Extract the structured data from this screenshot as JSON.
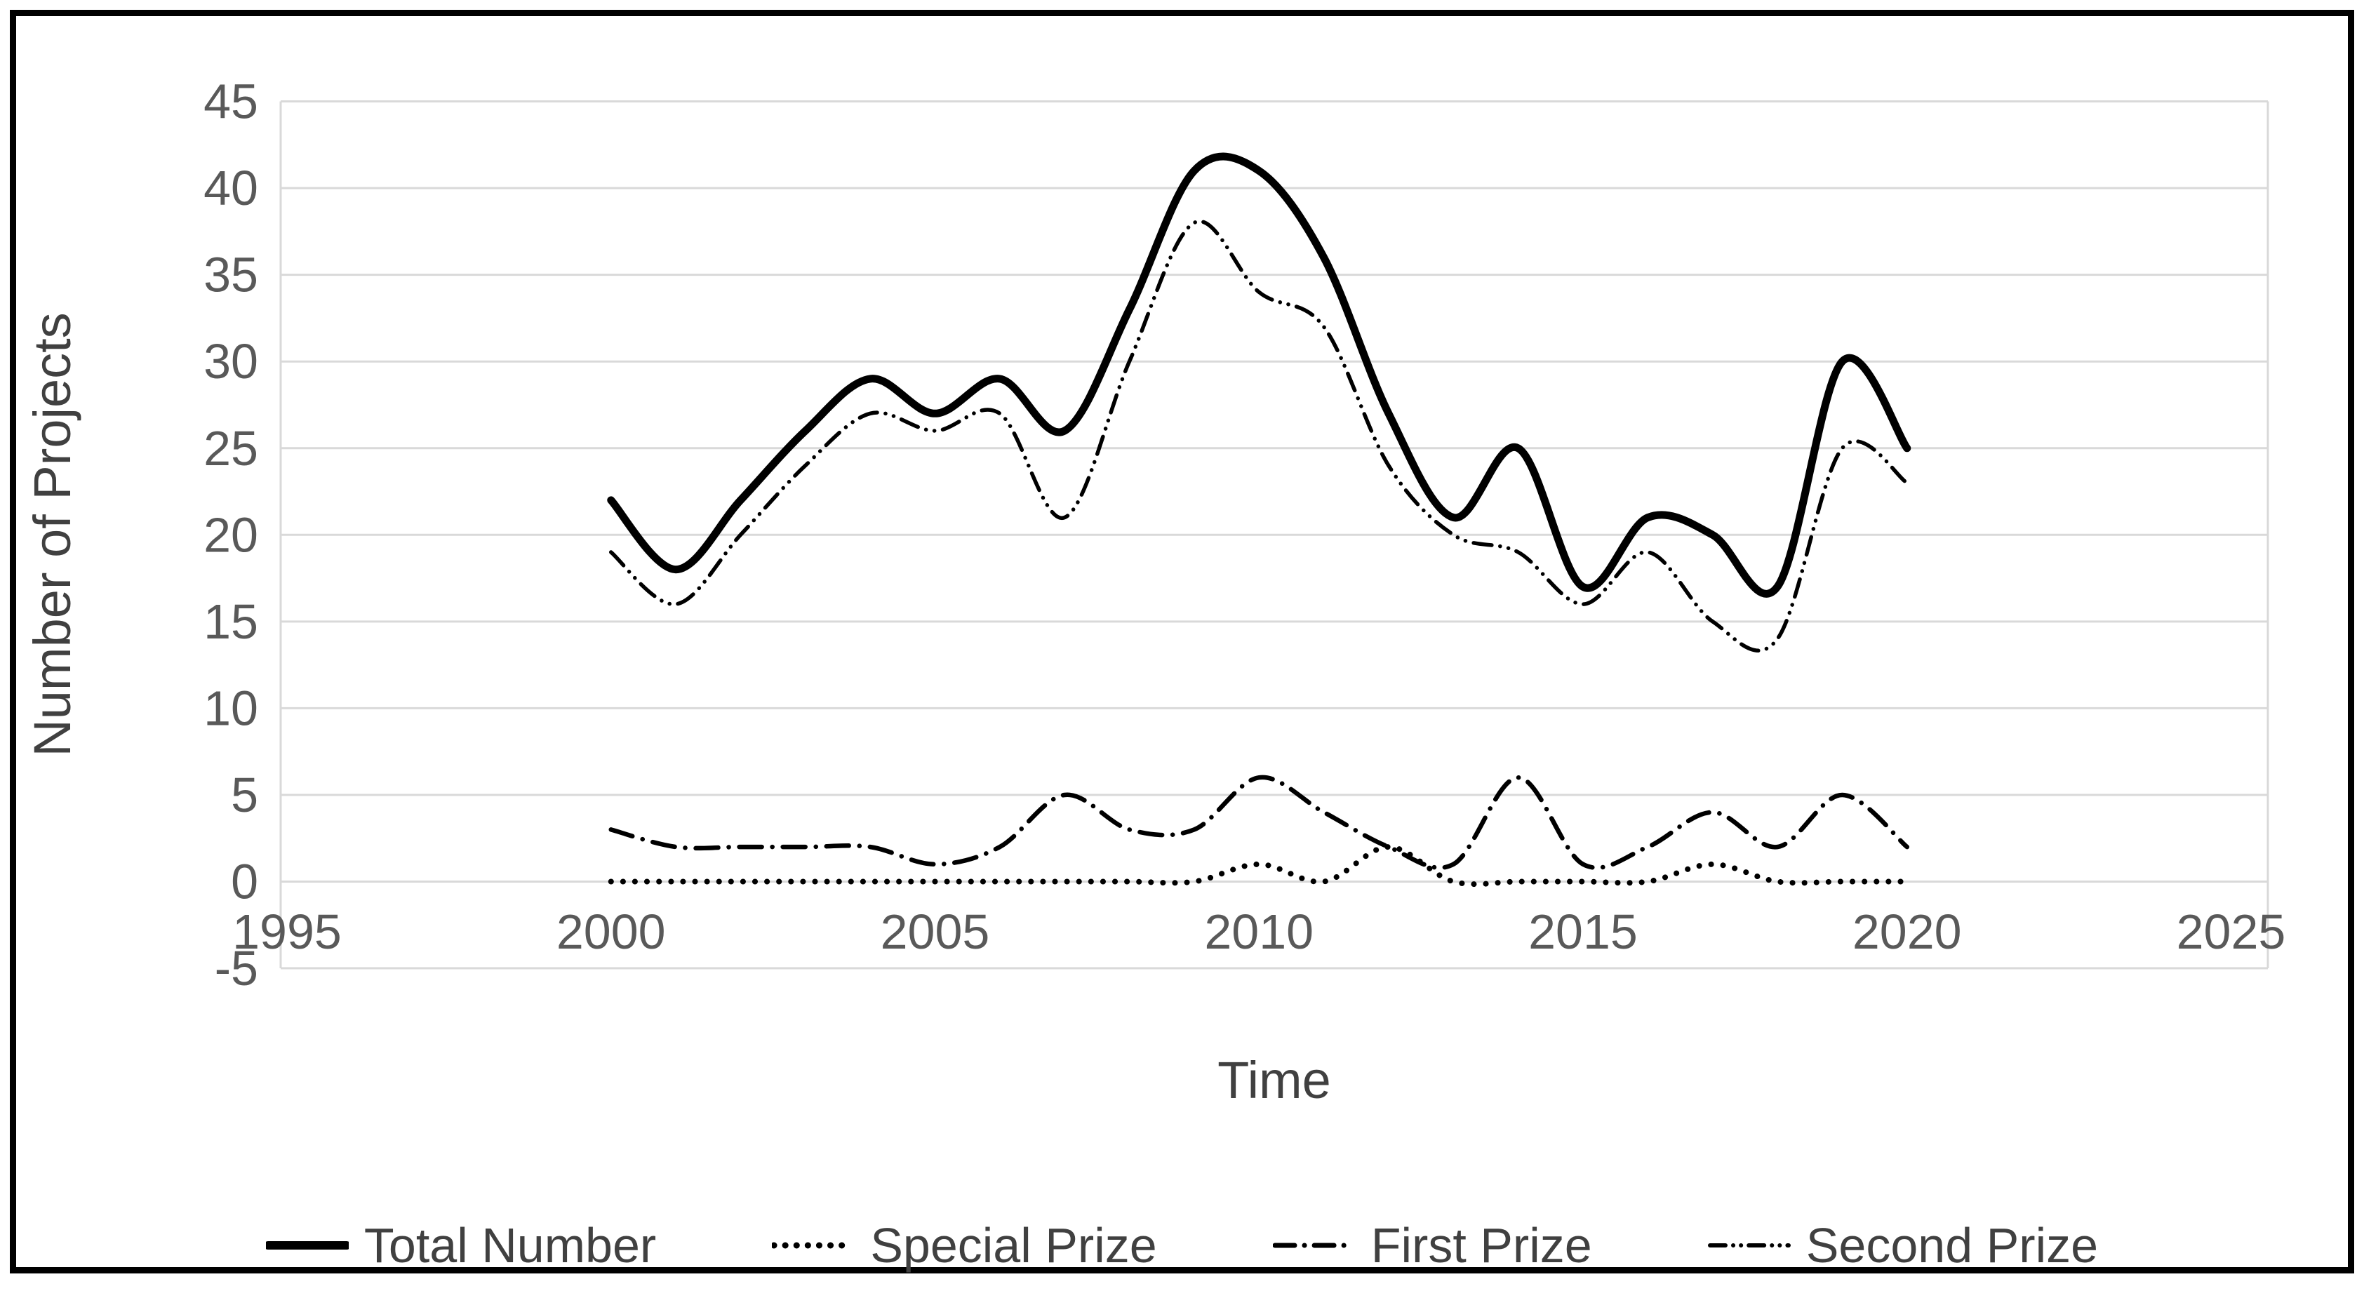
{
  "chart_data": {
    "type": "line",
    "title": "",
    "xlabel": "Time",
    "ylabel": "Number of Projects",
    "x": [
      2000,
      2001,
      2002,
      2003,
      2004,
      2005,
      2006,
      2007,
      2008,
      2009,
      2010,
      2011,
      2012,
      2013,
      2014,
      2015,
      2016,
      2017,
      2018,
      2019,
      2020
    ],
    "series": [
      {
        "name": "Total Number",
        "dash": "solid",
        "values": [
          22,
          18,
          22,
          26,
          29,
          27,
          29,
          26,
          33,
          41,
          41,
          36,
          27,
          21,
          25,
          17,
          21,
          20,
          17,
          30,
          25
        ]
      },
      {
        "name": "Special Prize",
        "dash": "dot",
        "values": [
          0,
          0,
          0,
          0,
          0,
          0,
          0,
          0,
          0,
          0,
          1,
          0,
          2,
          0,
          0,
          0,
          0,
          1,
          0,
          0,
          0
        ]
      },
      {
        "name": "First Prize",
        "dash": "dash-dot",
        "values": [
          3,
          2,
          2,
          2,
          2,
          1,
          2,
          5,
          3,
          3,
          6,
          4,
          2,
          1,
          6,
          1,
          2,
          4,
          2,
          5,
          2
        ]
      },
      {
        "name": "Second Prize",
        "dash": "dash-dot-dot",
        "values": [
          19,
          16,
          20,
          24,
          27,
          26,
          27,
          21,
          30,
          38,
          34,
          32,
          24,
          20,
          19,
          16,
          19,
          15,
          14,
          25,
          23
        ]
      }
    ],
    "xticks": [
      1995,
      2000,
      2005,
      2010,
      2015,
      2020,
      2025
    ],
    "yticks": [
      45,
      40,
      35,
      30,
      25,
      20,
      15,
      10,
      5,
      0,
      -5
    ],
    "xlim": [
      1995,
      2025
    ],
    "ylim": [
      -5,
      45
    ],
    "grid": true,
    "smooth": true,
    "legend_position": "bottom",
    "line_color": "#000000",
    "grid_color": "#d9d9d9",
    "tick_label_color": "#595959",
    "axis_title_color": "#404040"
  }
}
